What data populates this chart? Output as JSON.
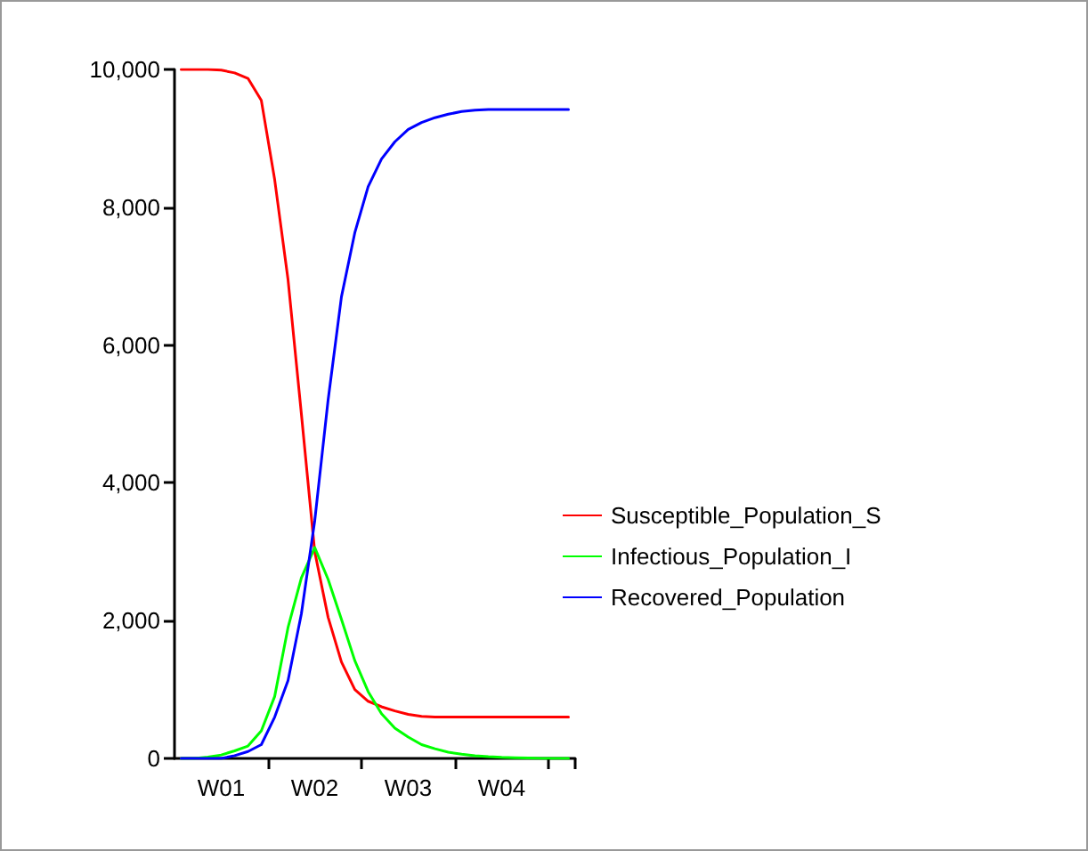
{
  "chart_data": {
    "type": "line",
    "categories": [
      null,
      null,
      null,
      "W01",
      null,
      null,
      null,
      null,
      null,
      null,
      "W02",
      null,
      null,
      null,
      null,
      null,
      null,
      "W03",
      null,
      null,
      null,
      null,
      null,
      null,
      "W04",
      null,
      null,
      null,
      null,
      null
    ],
    "series": [
      {
        "name": "Susceptible_Population_S",
        "color": "#ff0000",
        "values": [
          10000,
          10000,
          10000,
          9990,
          9950,
          9870,
          9550,
          8400,
          6950,
          5000,
          3000,
          2050,
          1400,
          1000,
          830,
          750,
          690,
          640,
          610,
          600,
          600,
          600,
          600,
          600,
          600,
          600,
          600,
          600,
          600,
          600
        ]
      },
      {
        "name": "Infectious_Population_I",
        "color": "#00ff00",
        "values": [
          0,
          0,
          20,
          50,
          110,
          180,
          400,
          900,
          1900,
          2620,
          3060,
          2600,
          2020,
          1420,
          970,
          650,
          440,
          310,
          200,
          140,
          90,
          60,
          40,
          25,
          15,
          10,
          5,
          0,
          0,
          0
        ]
      },
      {
        "name": "Recovered_Population",
        "color": "#0000ff",
        "values": [
          0,
          0,
          0,
          0,
          40,
          100,
          200,
          600,
          1130,
          2100,
          3450,
          5200,
          6700,
          7630,
          8300,
          8700,
          8950,
          9130,
          9230,
          9300,
          9350,
          9390,
          9410,
          9420,
          9420,
          9420,
          9420,
          9420,
          9420,
          9420
        ]
      }
    ],
    "ylim": [
      0,
      10000
    ],
    "yticks": [
      {
        "value": 0,
        "label": "0"
      },
      {
        "value": 2000,
        "label": "2,000"
      },
      {
        "value": 4000,
        "label": "4,000"
      },
      {
        "value": 6000,
        "label": "6,000"
      },
      {
        "value": 8000,
        "label": "8,000"
      },
      {
        "value": 10000,
        "label": "10,000"
      }
    ],
    "legend": "right",
    "grid": false,
    "marker": "none",
    "line_style": "solid"
  }
}
